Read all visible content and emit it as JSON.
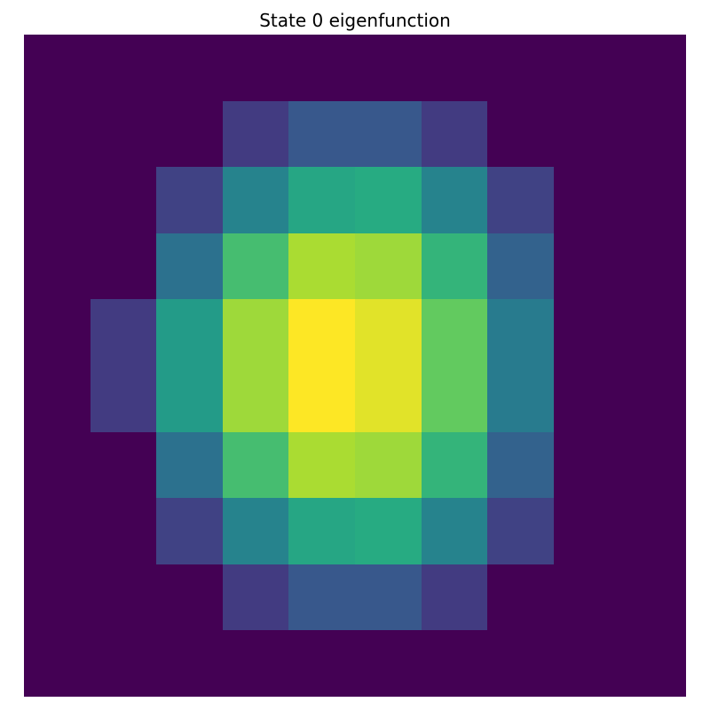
{
  "chart_data": {
    "type": "heatmap",
    "title": "State 0 eigenfunction",
    "xlabel": "",
    "ylabel": "",
    "colormap": "viridis",
    "axes_visible": false,
    "grid": false,
    "legend": "none",
    "value_range": [
      0,
      1
    ],
    "rows": 10,
    "cols": 10,
    "values": [
      [
        0.0,
        0.0,
        0.0,
        0.0,
        0.0,
        0.0,
        0.0,
        0.0,
        0.0,
        0.0
      ],
      [
        0.0,
        0.0,
        0.0,
        0.18,
        0.28,
        0.28,
        0.18,
        0.0,
        0.0,
        0.0
      ],
      [
        0.0,
        0.0,
        0.2,
        0.45,
        0.6,
        0.62,
        0.45,
        0.2,
        0.0,
        0.0
      ],
      [
        0.0,
        0.0,
        0.38,
        0.7,
        0.88,
        0.86,
        0.66,
        0.32,
        0.0,
        0.0
      ],
      [
        0.0,
        0.18,
        0.55,
        0.86,
        1.0,
        0.96,
        0.76,
        0.42,
        0.0,
        0.0
      ],
      [
        0.0,
        0.18,
        0.55,
        0.86,
        1.0,
        0.96,
        0.76,
        0.42,
        0.0,
        0.0
      ],
      [
        0.0,
        0.0,
        0.38,
        0.7,
        0.88,
        0.86,
        0.66,
        0.32,
        0.0,
        0.0
      ],
      [
        0.0,
        0.0,
        0.2,
        0.45,
        0.6,
        0.62,
        0.45,
        0.2,
        0.0,
        0.0
      ],
      [
        0.0,
        0.0,
        0.0,
        0.18,
        0.28,
        0.28,
        0.18,
        0.0,
        0.0,
        0.0
      ],
      [
        0.0,
        0.0,
        0.0,
        0.0,
        0.0,
        0.0,
        0.0,
        0.0,
        0.0,
        0.0
      ]
    ]
  }
}
